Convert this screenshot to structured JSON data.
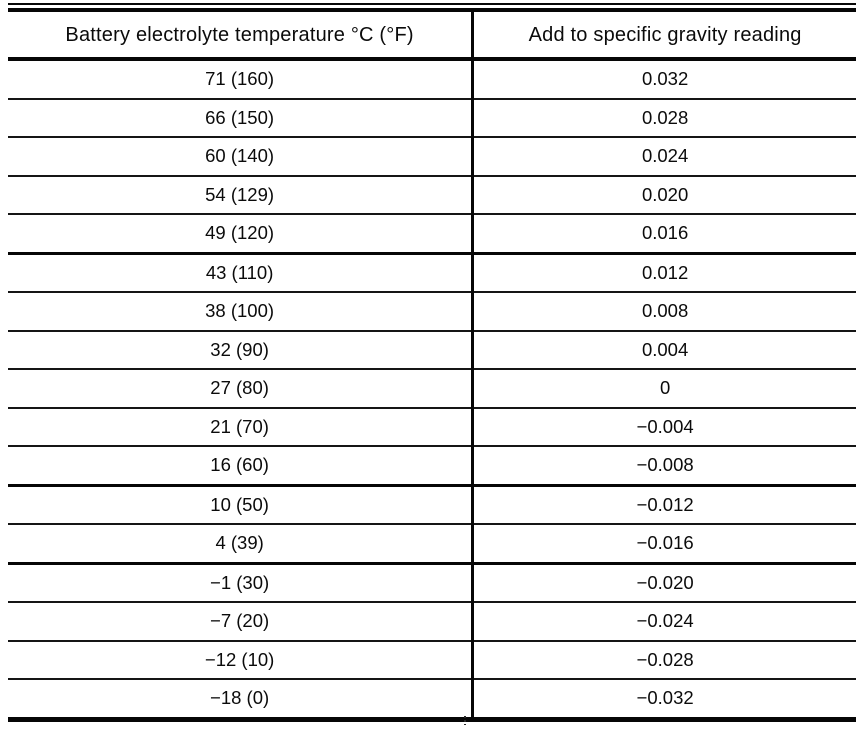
{
  "table": {
    "headers": [
      "Battery electrolyte temperature °C (°F)",
      "Add to specific gravity reading"
    ],
    "rows": [
      [
        "71 (160)",
        "0.032"
      ],
      [
        "66 (150)",
        "0.028"
      ],
      [
        "60 (140)",
        "0.024"
      ],
      [
        "54 (129)",
        "0.020"
      ],
      [
        "49 (120)",
        "0.016"
      ],
      [
        "43 (110)",
        "0.012"
      ],
      [
        "38 (100)",
        "0.008"
      ],
      [
        "32 (90)",
        "0.004"
      ],
      [
        "27 (80)",
        "0"
      ],
      [
        "21 (70)",
        "−0.004"
      ],
      [
        "16 (60)",
        "−0.008"
      ],
      [
        "10 (50)",
        "−0.012"
      ],
      [
        "4 (39)",
        "−0.016"
      ],
      [
        "−1 (30)",
        "−0.020"
      ],
      [
        "−7 (20)",
        "−0.024"
      ],
      [
        "−12 (10)",
        "−0.028"
      ],
      [
        "−18 (0)",
        "−0.032"
      ]
    ]
  },
  "colors": {
    "ink": "#0b0b0b",
    "paper": "#ffffff"
  }
}
